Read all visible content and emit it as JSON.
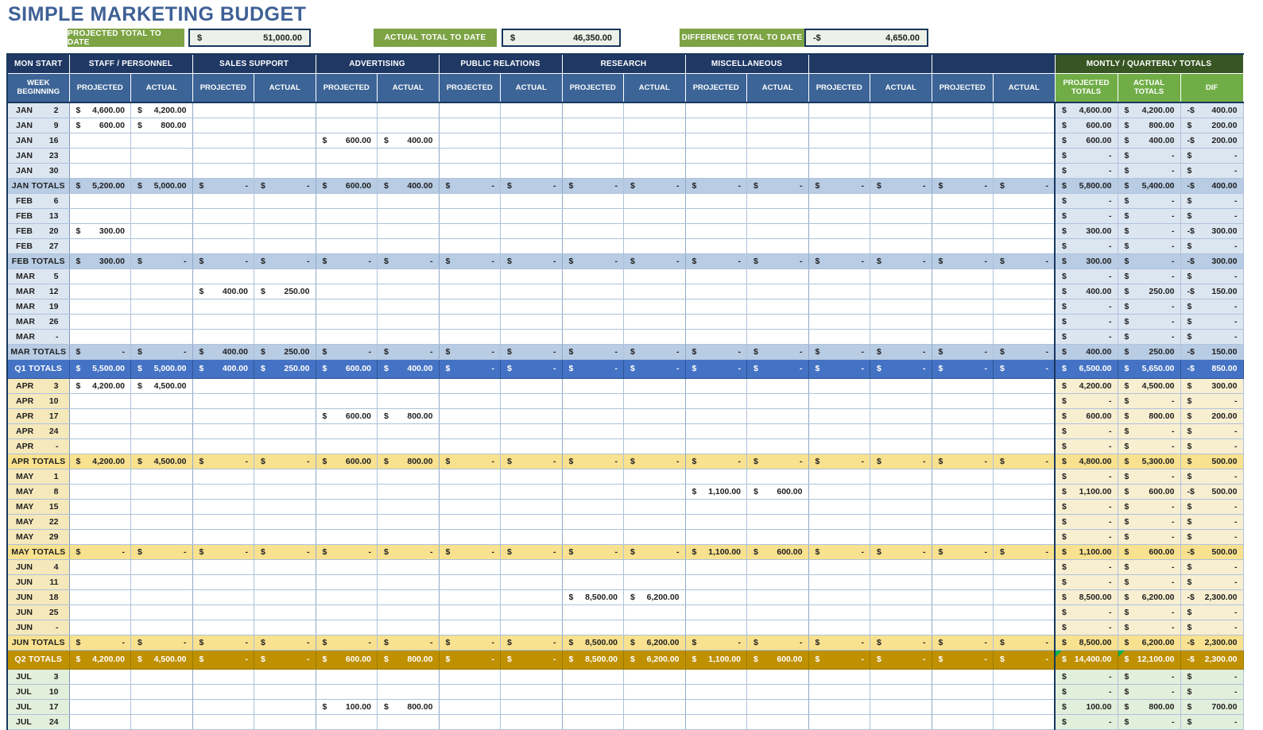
{
  "title": "SIMPLE MARKETING BUDGET",
  "colors": {
    "navy_header": "#1F3864",
    "blue_header": "#3C6496",
    "dark_green": "#375623",
    "green": "#70AD47",
    "summary_green": "#7CA444",
    "q1_blue": "#4472C4",
    "m1_blue": "#B8CCE4",
    "w1_blue": "#DCE6F1",
    "q2_gold": "#BF9000",
    "m2_yellow": "#F8E18F",
    "w2_label": "#F5E8BB",
    "w2_total": "#F8EFD1",
    "w3_green": "#E2EFDA",
    "title_color": "#3E6095",
    "marker_green": "#00B050"
  },
  "summary": [
    {
      "label": "PROJECTED TOTAL TO DATE",
      "currency": "$",
      "value": "51,000.00"
    },
    {
      "label": "ACTUAL TOTAL TO DATE",
      "currency": "$",
      "value": "46,350.00"
    },
    {
      "label": "DIFFERENCE TOTAL TO DATE",
      "currency": "-$",
      "value": "4,650.00"
    }
  ],
  "table": {
    "corner_header": "MON START",
    "week_header": "WEEK BEGINNING",
    "groups": [
      "STAFF / PERSONNEL",
      "SALES SUPPORT",
      "ADVERTISING",
      "PUBLIC RELATIONS",
      "RESEARCH",
      "MISCELLANEOUS",
      "",
      ""
    ],
    "sub_headers": [
      "PROJECTED",
      "ACTUAL"
    ],
    "totals_group": "MONTLY / QUARTERLY TOTALS",
    "totals_headers": [
      "PROJECTED TOTALS",
      "ACTUAL TOTALS",
      "DIF"
    ],
    "rows": [
      {
        "label": "JAN",
        "day": "2",
        "type": "w1",
        "cells": [
          "4,600.00",
          "4,200.00",
          "",
          "",
          "",
          "",
          "",
          "",
          "",
          "",
          "",
          "",
          "",
          "",
          "",
          ""
        ],
        "totals": [
          "4,600.00",
          "4,200.00",
          "-400.00"
        ]
      },
      {
        "label": "JAN",
        "day": "9",
        "type": "w1",
        "cells": [
          "600.00",
          "800.00",
          "",
          "",
          "",
          "",
          "",
          "",
          "",
          "",
          "",
          "",
          "",
          "",
          "",
          ""
        ],
        "totals": [
          "600.00",
          "800.00",
          "200.00"
        ]
      },
      {
        "label": "JAN",
        "day": "16",
        "type": "w1",
        "cells": [
          "",
          "",
          "",
          "",
          "600.00",
          "400.00",
          "",
          "",
          "",
          "",
          "",
          "",
          "",
          "",
          "",
          ""
        ],
        "totals": [
          "600.00",
          "400.00",
          "-200.00"
        ]
      },
      {
        "label": "JAN",
        "day": "23",
        "type": "w1",
        "cells": [
          "",
          "",
          "",
          "",
          "",
          "",
          "",
          "",
          "",
          "",
          "",
          "",
          "",
          "",
          "",
          ""
        ],
        "totals": [
          "-",
          "-",
          "-"
        ]
      },
      {
        "label": "JAN",
        "day": "30",
        "type": "w1",
        "cells": [
          "",
          "",
          "",
          "",
          "",
          "",
          "",
          "",
          "",
          "",
          "",
          "",
          "",
          "",
          "",
          ""
        ],
        "totals": [
          "-",
          "-",
          "-"
        ]
      },
      {
        "label": "JAN TOTALS",
        "day": "",
        "type": "m1",
        "cells": [
          "5,200.00",
          "5,000.00",
          "-",
          "-",
          "600.00",
          "400.00",
          "-",
          "-",
          "-",
          "-",
          "-",
          "-",
          "-",
          "-",
          "-",
          "-"
        ],
        "totals": [
          "5,800.00",
          "5,400.00",
          "-400.00"
        ]
      },
      {
        "label": "FEB",
        "day": "6",
        "type": "w1",
        "cells": [
          "",
          "",
          "",
          "",
          "",
          "",
          "",
          "",
          "",
          "",
          "",
          "",
          "",
          "",
          "",
          ""
        ],
        "totals": [
          "-",
          "-",
          "-"
        ]
      },
      {
        "label": "FEB",
        "day": "13",
        "type": "w1",
        "cells": [
          "",
          "",
          "",
          "",
          "",
          "",
          "",
          "",
          "",
          "",
          "",
          "",
          "",
          "",
          "",
          ""
        ],
        "totals": [
          "-",
          "-",
          "-"
        ]
      },
      {
        "label": "FEB",
        "day": "20",
        "type": "w1",
        "cells": [
          "300.00",
          "",
          "",
          "",
          "",
          "",
          "",
          "",
          "",
          "",
          "",
          "",
          "",
          "",
          "",
          ""
        ],
        "totals": [
          "300.00",
          "-",
          "-300.00"
        ]
      },
      {
        "label": "FEB",
        "day": "27",
        "type": "w1",
        "cells": [
          "",
          "",
          "",
          "",
          "",
          "",
          "",
          "",
          "",
          "",
          "",
          "",
          "",
          "",
          "",
          ""
        ],
        "totals": [
          "-",
          "-",
          "-"
        ]
      },
      {
        "label": "FEB TOTALS",
        "day": "",
        "type": "m1",
        "cells": [
          "300.00",
          "-",
          "-",
          "-",
          "-",
          "-",
          "-",
          "-",
          "-",
          "-",
          "-",
          "-",
          "-",
          "-",
          "-",
          "-"
        ],
        "totals": [
          "300.00",
          "-",
          "-300.00"
        ]
      },
      {
        "label": "MAR",
        "day": "5",
        "type": "w1",
        "cells": [
          "",
          "",
          "",
          "",
          "",
          "",
          "",
          "",
          "",
          "",
          "",
          "",
          "",
          "",
          "",
          ""
        ],
        "totals": [
          "-",
          "-",
          "-"
        ]
      },
      {
        "label": "MAR",
        "day": "12",
        "type": "w1",
        "cells": [
          "",
          "",
          "400.00",
          "250.00",
          "",
          "",
          "",
          "",
          "",
          "",
          "",
          "",
          "",
          "",
          "",
          ""
        ],
        "totals": [
          "400.00",
          "250.00",
          "-150.00"
        ]
      },
      {
        "label": "MAR",
        "day": "19",
        "type": "w1",
        "cells": [
          "",
          "",
          "",
          "",
          "",
          "",
          "",
          "",
          "",
          "",
          "",
          "",
          "",
          "",
          "",
          ""
        ],
        "totals": [
          "-",
          "-",
          "-"
        ]
      },
      {
        "label": "MAR",
        "day": "26",
        "type": "w1",
        "cells": [
          "",
          "",
          "",
          "",
          "",
          "",
          "",
          "",
          "",
          "",
          "",
          "",
          "",
          "",
          "",
          ""
        ],
        "totals": [
          "-",
          "-",
          "-"
        ]
      },
      {
        "label": "MAR",
        "day": "-",
        "type": "w1",
        "cells": [
          "",
          "",
          "",
          "",
          "",
          "",
          "",
          "",
          "",
          "",
          "",
          "",
          "",
          "",
          "",
          ""
        ],
        "totals": [
          "-",
          "-",
          "-"
        ]
      },
      {
        "label": "MAR TOTALS",
        "day": "",
        "type": "m1",
        "cells": [
          "-",
          "-",
          "400.00",
          "250.00",
          "-",
          "-",
          "-",
          "-",
          "-",
          "-",
          "-",
          "-",
          "-",
          "-",
          "-",
          "-"
        ],
        "totals": [
          "400.00",
          "250.00",
          "-150.00"
        ]
      },
      {
        "label": "Q1 TOTALS",
        "day": "",
        "type": "q1",
        "cells": [
          "5,500.00",
          "5,000.00",
          "400.00",
          "250.00",
          "600.00",
          "400.00",
          "-",
          "-",
          "-",
          "-",
          "-",
          "-",
          "-",
          "-",
          "-",
          "-"
        ],
        "totals": [
          "6,500.00",
          "5,650.00",
          "-850.00"
        ]
      },
      {
        "label": "APR",
        "day": "3",
        "type": "w2",
        "cells": [
          "4,200.00",
          "4,500.00",
          "",
          "",
          "",
          "",
          "",
          "",
          "",
          "",
          "",
          "",
          "",
          "",
          "",
          ""
        ],
        "totals": [
          "4,200.00",
          "4,500.00",
          "300.00"
        ]
      },
      {
        "label": "APR",
        "day": "10",
        "type": "w2",
        "cells": [
          "",
          "",
          "",
          "",
          "",
          "",
          "",
          "",
          "",
          "",
          "",
          "",
          "",
          "",
          "",
          ""
        ],
        "totals": [
          "-",
          "-",
          "-"
        ]
      },
      {
        "label": "APR",
        "day": "17",
        "type": "w2",
        "cells": [
          "",
          "",
          "",
          "",
          "600.00",
          "800.00",
          "",
          "",
          "",
          "",
          "",
          "",
          "",
          "",
          "",
          ""
        ],
        "totals": [
          "600.00",
          "800.00",
          "200.00"
        ]
      },
      {
        "label": "APR",
        "day": "24",
        "type": "w2",
        "cells": [
          "",
          "",
          "",
          "",
          "",
          "",
          "",
          "",
          "",
          "",
          "",
          "",
          "",
          "",
          "",
          ""
        ],
        "totals": [
          "-",
          "-",
          "-"
        ]
      },
      {
        "label": "APR",
        "day": "-",
        "type": "w2",
        "cells": [
          "",
          "",
          "",
          "",
          "",
          "",
          "",
          "",
          "",
          "",
          "",
          "",
          "",
          "",
          "",
          ""
        ],
        "totals": [
          "-",
          "-",
          "-"
        ]
      },
      {
        "label": "APR TOTALS",
        "day": "",
        "type": "m2",
        "cells": [
          "4,200.00",
          "4,500.00",
          "-",
          "-",
          "600.00",
          "800.00",
          "-",
          "-",
          "-",
          "-",
          "-",
          "-",
          "-",
          "-",
          "-",
          "-"
        ],
        "totals": [
          "4,800.00",
          "5,300.00",
          "500.00"
        ]
      },
      {
        "label": "MAY",
        "day": "1",
        "type": "w2",
        "cells": [
          "",
          "",
          "",
          "",
          "",
          "",
          "",
          "",
          "",
          "",
          "",
          "",
          "",
          "",
          "",
          ""
        ],
        "totals": [
          "-",
          "-",
          "-"
        ]
      },
      {
        "label": "MAY",
        "day": "8",
        "type": "w2",
        "cells": [
          "",
          "",
          "",
          "",
          "",
          "",
          "",
          "",
          "",
          "",
          "1,100.00",
          "600.00",
          "",
          "",
          "",
          ""
        ],
        "totals": [
          "1,100.00",
          "600.00",
          "-500.00"
        ]
      },
      {
        "label": "MAY",
        "day": "15",
        "type": "w2",
        "cells": [
          "",
          "",
          "",
          "",
          "",
          "",
          "",
          "",
          "",
          "",
          "",
          "",
          "",
          "",
          "",
          ""
        ],
        "totals": [
          "-",
          "-",
          "-"
        ]
      },
      {
        "label": "MAY",
        "day": "22",
        "type": "w2",
        "cells": [
          "",
          "",
          "",
          "",
          "",
          "",
          "",
          "",
          "",
          "",
          "",
          "",
          "",
          "",
          "",
          ""
        ],
        "totals": [
          "-",
          "-",
          "-"
        ]
      },
      {
        "label": "MAY",
        "day": "29",
        "type": "w2",
        "cells": [
          "",
          "",
          "",
          "",
          "",
          "",
          "",
          "",
          "",
          "",
          "",
          "",
          "",
          "",
          "",
          ""
        ],
        "totals": [
          "-",
          "-",
          "-"
        ]
      },
      {
        "label": "MAY TOTALS",
        "day": "",
        "type": "m2",
        "cells": [
          "-",
          "-",
          "-",
          "-",
          "-",
          "-",
          "-",
          "-",
          "-",
          "-",
          "1,100.00",
          "600.00",
          "-",
          "-",
          "-",
          "-"
        ],
        "totals": [
          "1,100.00",
          "600.00",
          "-500.00"
        ]
      },
      {
        "label": "JUN",
        "day": "4",
        "type": "w2",
        "cells": [
          "",
          "",
          "",
          "",
          "",
          "",
          "",
          "",
          "",
          "",
          "",
          "",
          "",
          "",
          "",
          ""
        ],
        "totals": [
          "-",
          "-",
          "-"
        ]
      },
      {
        "label": "JUN",
        "day": "11",
        "type": "w2",
        "cells": [
          "",
          "",
          "",
          "",
          "",
          "",
          "",
          "",
          "",
          "",
          "",
          "",
          "",
          "",
          "",
          ""
        ],
        "totals": [
          "-",
          "-",
          "-"
        ]
      },
      {
        "label": "JUN",
        "day": "18",
        "type": "w2",
        "cells": [
          "",
          "",
          "",
          "",
          "",
          "",
          "",
          "",
          "8,500.00",
          "6,200.00",
          "",
          "",
          "",
          "",
          "",
          ""
        ],
        "totals": [
          "8,500.00",
          "6,200.00",
          "-2,300.00"
        ]
      },
      {
        "label": "JUN",
        "day": "25",
        "type": "w2",
        "cells": [
          "",
          "",
          "",
          "",
          "",
          "",
          "",
          "",
          "",
          "",
          "",
          "",
          "",
          "",
          "",
          ""
        ],
        "totals": [
          "-",
          "-",
          "-"
        ]
      },
      {
        "label": "JUN",
        "day": "-",
        "type": "w2",
        "cells": [
          "",
          "",
          "",
          "",
          "",
          "",
          "",
          "",
          "",
          "",
          "",
          "",
          "",
          "",
          "",
          ""
        ],
        "totals": [
          "-",
          "-",
          "-"
        ]
      },
      {
        "label": "JUN TOTALS",
        "day": "",
        "type": "m2",
        "cells": [
          "-",
          "-",
          "-",
          "-",
          "-",
          "-",
          "-",
          "-",
          "8,500.00",
          "6,200.00",
          "-",
          "-",
          "-",
          "-",
          "-",
          "-"
        ],
        "totals": [
          "8,500.00",
          "6,200.00",
          "-2,300.00"
        ]
      },
      {
        "label": "Q2 TOTALS",
        "day": "",
        "type": "q2",
        "cells": [
          "4,200.00",
          "4,500.00",
          "-",
          "-",
          "600.00",
          "800.00",
          "-",
          "-",
          "8,500.00",
          "6,200.00",
          "1,100.00",
          "600.00",
          "-",
          "-",
          "-",
          "-"
        ],
        "totals": [
          "14,400.00",
          "12,100.00",
          "-2,300.00"
        ],
        "mark": [
          0,
          1
        ]
      },
      {
        "label": "JUL",
        "day": "3",
        "type": "w3",
        "cells": [
          "",
          "",
          "",
          "",
          "",
          "",
          "",
          "",
          "",
          "",
          "",
          "",
          "",
          "",
          "",
          ""
        ],
        "totals": [
          "-",
          "-",
          "-"
        ]
      },
      {
        "label": "JUL",
        "day": "10",
        "type": "w3",
        "cells": [
          "",
          "",
          "",
          "",
          "",
          "",
          "",
          "",
          "",
          "",
          "",
          "",
          "",
          "",
          "",
          ""
        ],
        "totals": [
          "-",
          "-",
          "-"
        ]
      },
      {
        "label": "JUL",
        "day": "17",
        "type": "w3",
        "cells": [
          "",
          "",
          "",
          "",
          "100.00",
          "800.00",
          "",
          "",
          "",
          "",
          "",
          "",
          "",
          "",
          "",
          ""
        ],
        "totals": [
          "100.00",
          "800.00",
          "700.00"
        ]
      },
      {
        "label": "JUL",
        "day": "24",
        "type": "w3",
        "cells": [
          "",
          "",
          "",
          "",
          "",
          "",
          "",
          "",
          "",
          "",
          "",
          "",
          "",
          "",
          "",
          ""
        ],
        "totals": [
          "-",
          "-",
          "-"
        ]
      }
    ]
  }
}
